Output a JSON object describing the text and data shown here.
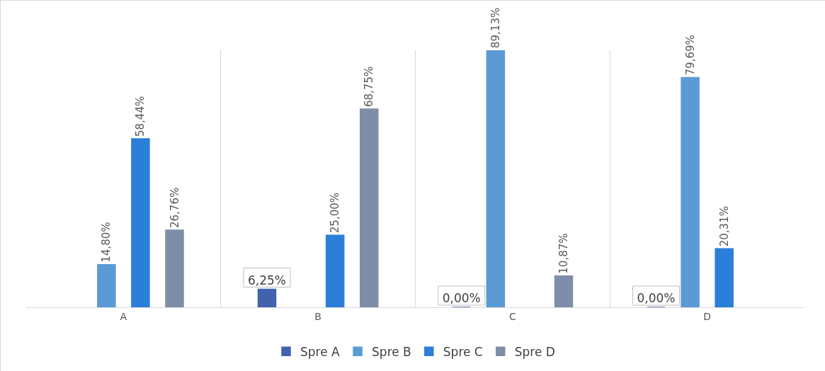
{
  "chart_data": {
    "type": "bar",
    "categories": [
      "A",
      "B",
      "C",
      "D"
    ],
    "series": [
      {
        "name": "Spre A",
        "color": "#4163ad",
        "values": [
          null,
          6.25,
          0,
          0
        ],
        "value_labels": [
          null,
          "6,25%",
          "0,00%",
          "0,00%"
        ]
      },
      {
        "name": "Spre B",
        "color": "#5b9bd5",
        "values": [
          14.8,
          null,
          89.13,
          79.69
        ],
        "value_labels": [
          "14,80%",
          null,
          "89,13%",
          "79,69%"
        ]
      },
      {
        "name": "Spre C",
        "color": "#2b7fd9",
        "values": [
          58.44,
          25,
          null,
          20.31
        ],
        "value_labels": [
          "58,44%",
          "25,00%",
          null,
          "20,31%"
        ]
      },
      {
        "name": "Spre D",
        "color": "#7f8ea8",
        "values": [
          26.76,
          68.75,
          10.87,
          null
        ],
        "value_labels": [
          "26,76%",
          "68,75%",
          "10,87%",
          null
        ]
      }
    ],
    "grid": "x",
    "legend": "bottom",
    "tick_labels": "x"
  }
}
